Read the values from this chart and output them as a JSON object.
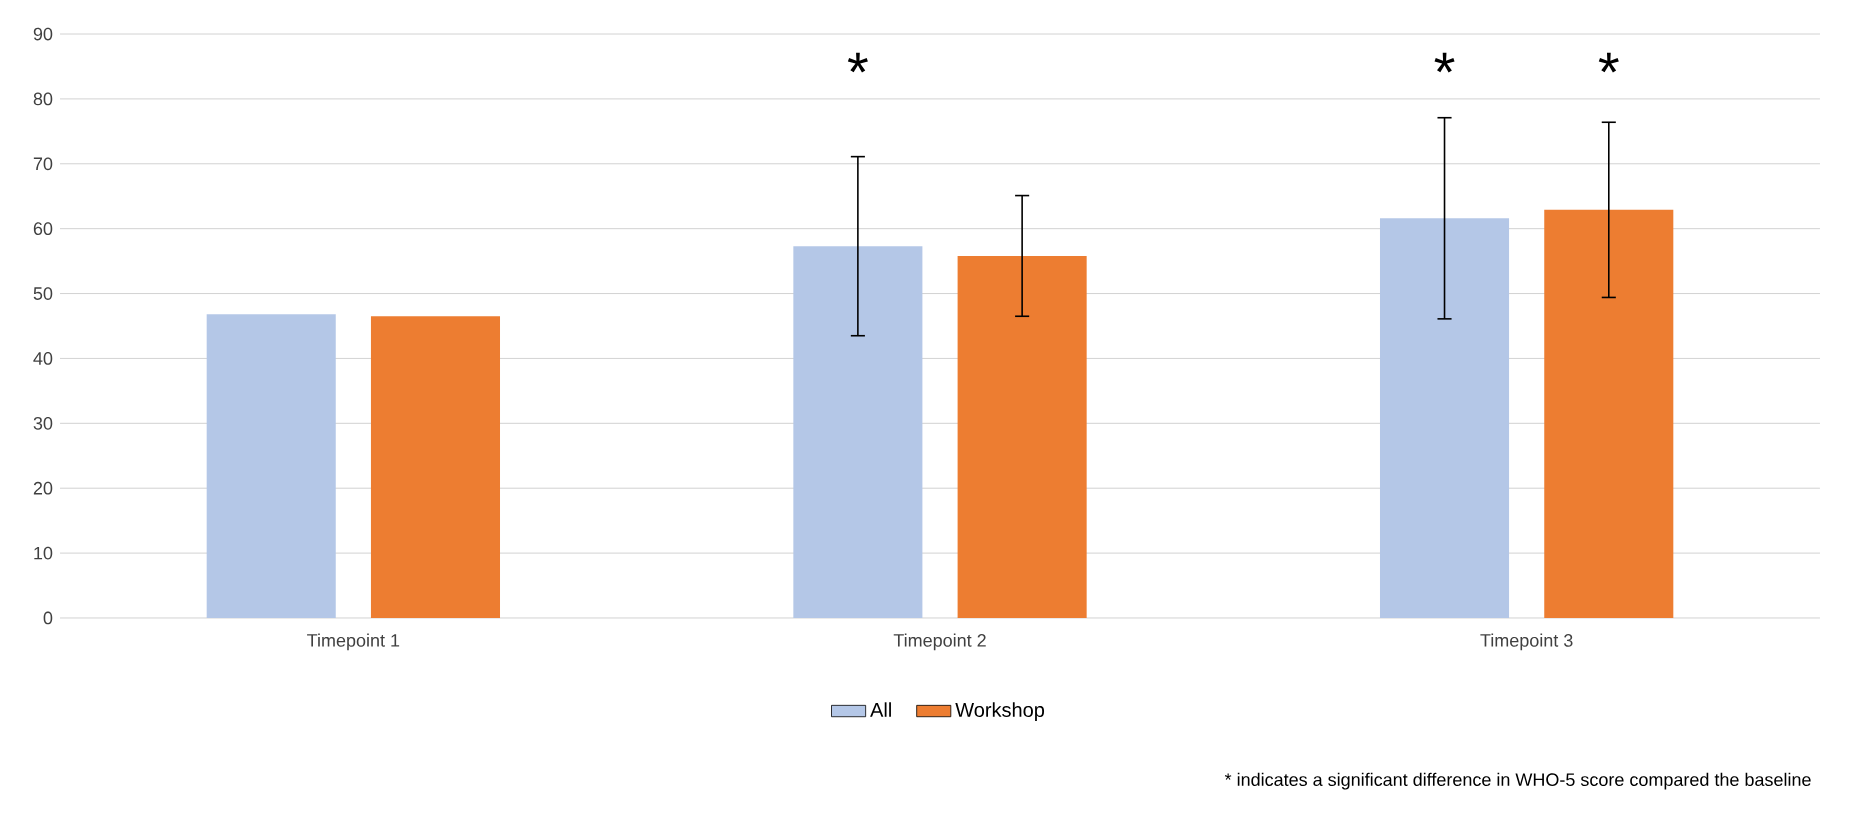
{
  "chart_data": {
    "type": "bar",
    "categories": [
      "Timepoint 1",
      "Timepoint 2",
      "Timepoint 3"
    ],
    "series": [
      {
        "name": "All",
        "color": "#b4c7e7",
        "values": [
          46.8,
          57.3,
          61.6
        ],
        "errors": [
          null,
          13.8,
          15.5
        ]
      },
      {
        "name": "Workshop",
        "color": "#ed7d31",
        "values": [
          46.5,
          55.8,
          62.9
        ],
        "errors": [
          null,
          9.3,
          13.5
        ]
      }
    ],
    "ylim": [
      0,
      90
    ],
    "yticks": [
      0,
      10,
      20,
      30,
      40,
      50,
      60,
      70,
      80,
      90
    ],
    "grid": "y",
    "legend": "bottom",
    "annotations": [
      "*",
      "*",
      "*",
      "* indicates a significant difference in WHO-5 score compared the baseline"
    ]
  }
}
